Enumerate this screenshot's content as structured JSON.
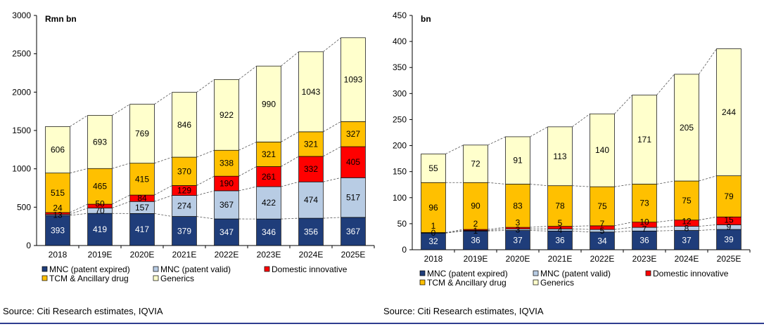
{
  "colors": {
    "mnc_expired": "#1f3d7a",
    "mnc_valid": "#b8cce4",
    "domestic_innovative": "#ff0000",
    "tcm_ancillary": "#ffc000",
    "generics": "#ffffcc"
  },
  "chart_data": [
    {
      "type": "bar",
      "stacked": true,
      "title": "",
      "ylabel": "Rmn bn",
      "xlabel": "",
      "ylim": [
        0,
        3000
      ],
      "yticks": [
        0,
        500,
        1000,
        1500,
        2000,
        2500,
        3000
      ],
      "categories": [
        "2018",
        "2019E",
        "2020E",
        "2021E",
        "2022E",
        "2023E",
        "2024E",
        "2025E"
      ],
      "series": [
        {
          "name": "MNC (patent expired)",
          "color_key": "mnc_expired",
          "values": [
            393,
            419,
            417,
            379,
            347,
            346,
            356,
            367
          ],
          "label_color": "#ffffff"
        },
        {
          "name": "MNC (patent valid)",
          "color_key": "mnc_valid",
          "values": [
            13,
            70,
            157,
            274,
            367,
            422,
            474,
            517
          ],
          "label_color": "#000000"
        },
        {
          "name": "Domestic innovative",
          "color_key": "domestic_innovative",
          "values": [
            24,
            50,
            84,
            129,
            190,
            261,
            332,
            405
          ],
          "label_color": "#000000"
        },
        {
          "name": "TCM & Ancillary drug",
          "color_key": "tcm_ancillary",
          "values": [
            515,
            465,
            415,
            370,
            338,
            321,
            321,
            327
          ],
          "label_color": "#000000"
        },
        {
          "name": "Generics",
          "color_key": "generics",
          "values": [
            606,
            693,
            769,
            846,
            922,
            990,
            1043,
            1093
          ],
          "label_color": "#000000"
        }
      ],
      "legend": [
        "MNC (patent expired)",
        "MNC (patent valid)",
        "Domestic innovative",
        "TCM & Ancillary drug",
        "Generics"
      ],
      "source": "Source: Citi Research estimates, IQVIA"
    },
    {
      "type": "bar",
      "stacked": true,
      "title": "",
      "ylabel": "bn",
      "xlabel": "",
      "ylim": [
        0,
        450
      ],
      "yticks": [
        0,
        50,
        100,
        150,
        200,
        250,
        300,
        350,
        400,
        450
      ],
      "categories": [
        "2018",
        "2019E",
        "2020E",
        "2021E",
        "2022E",
        "2023E",
        "2024E",
        "2025E"
      ],
      "series": [
        {
          "name": "MNC (patent expired)",
          "color_key": "mnc_expired",
          "values": [
            32,
            36,
            37,
            36,
            34,
            36,
            37,
            39
          ],
          "label_color": "#ffffff"
        },
        {
          "name": "MNC (patent valid)",
          "color_key": "mnc_valid",
          "values": [
            0,
            1,
            3,
            4,
            5,
            7,
            8,
            9
          ],
          "label_color": "#000000"
        },
        {
          "name": "Domestic innovative",
          "color_key": "domestic_innovative",
          "values": [
            1,
            2,
            3,
            5,
            7,
            10,
            12,
            15
          ],
          "label_color": "#000000"
        },
        {
          "name": "TCM & Ancillary drug",
          "color_key": "tcm_ancillary",
          "values": [
            96,
            90,
            83,
            78,
            75,
            73,
            75,
            79
          ],
          "label_color": "#000000"
        },
        {
          "name": "Generics",
          "color_key": "generics",
          "values": [
            55,
            72,
            91,
            113,
            140,
            171,
            205,
            244
          ],
          "label_color": "#000000"
        }
      ],
      "legend": [
        "MNC (patent expired)",
        "MNC (patent valid)",
        "Domestic innovative",
        "TCM & Ancillary drug",
        "Generics"
      ],
      "source": "Source: Citi Research estimates, IQVIA"
    }
  ]
}
